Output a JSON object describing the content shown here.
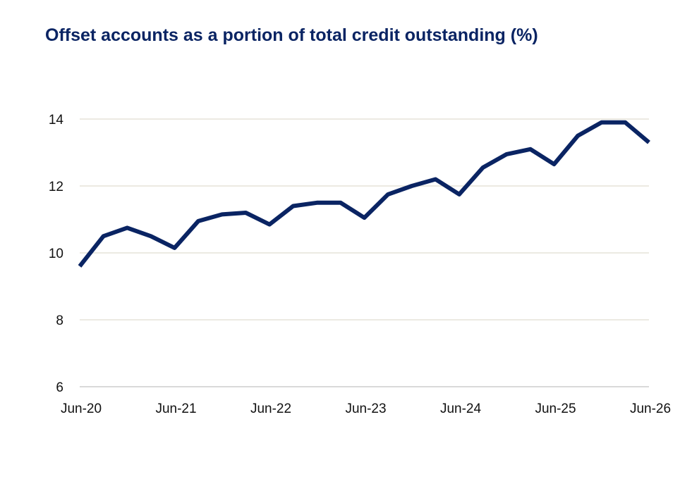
{
  "chart_data": {
    "type": "line",
    "title": "Offset accounts as a portion of total credit outstanding (%)",
    "xlabel": "",
    "ylabel": "",
    "ylim": [
      6,
      14.5
    ],
    "yticks": [
      6,
      8,
      10,
      12,
      14
    ],
    "x_tick_labels": [
      "Jun-20",
      "Jun-21",
      "Jun-22",
      "Jun-23",
      "Jun-24",
      "Jun-25",
      "Jun-26"
    ],
    "grid": true,
    "colors": {
      "line": "#0a2463",
      "grid": "#e6e3d8",
      "axis": "#d9d9d9",
      "title": "#0a2463"
    },
    "series": [
      {
        "x": [
          "Jun-20",
          "Sep-20",
          "Dec-20",
          "Mar-21",
          "Jun-21",
          "Sep-21",
          "Dec-21",
          "Mar-22",
          "Jun-22",
          "Sep-22",
          "Dec-22",
          "Mar-23",
          "Jun-23",
          "Sep-23",
          "Dec-23",
          "Mar-24",
          "Jun-24",
          "Sep-24",
          "Dec-24",
          "Mar-25",
          "Jun-25",
          "Sep-25",
          "Dec-25",
          "Mar-26",
          "Jun-26"
        ],
        "values": [
          9.6,
          10.5,
          10.75,
          10.5,
          10.15,
          10.95,
          11.15,
          11.2,
          10.85,
          11.4,
          11.5,
          11.5,
          11.05,
          11.75,
          12.0,
          12.2,
          11.75,
          12.55,
          12.95,
          13.1,
          12.65,
          13.5,
          13.9,
          13.9,
          13.3
        ]
      }
    ]
  }
}
